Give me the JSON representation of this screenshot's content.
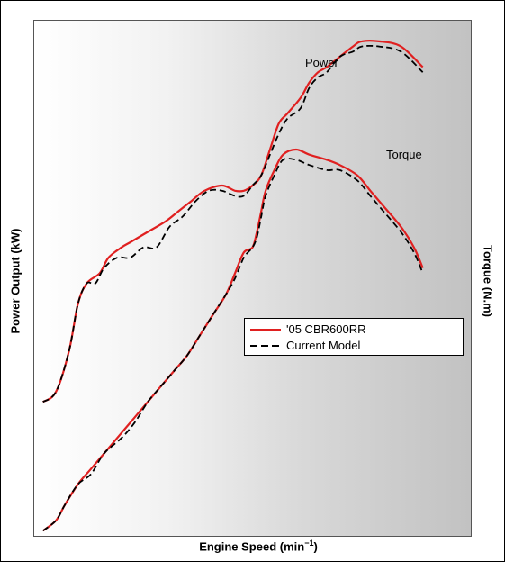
{
  "chart_data": {
    "type": "line",
    "title": "",
    "xlabel": "Engine Speed (min",
    "xlabel_sup": "−1",
    "ylabel_left": "Power Output (kW)",
    "ylabel_right": "Torque (N.m)",
    "grid": false,
    "legend_position": "right",
    "annotations": [
      "Power",
      "Torque"
    ],
    "legend": [
      "'05 CBR600RR",
      "Current Model"
    ],
    "colors": {
      "cbr600rr": "#e02020",
      "current": "#000000"
    },
    "series": [
      {
        "name": "'05 CBR600RR",
        "curve": "Power",
        "style": "solid",
        "points": [
          [
            0.02,
            0.74
          ],
          [
            0.05,
            0.72
          ],
          [
            0.08,
            0.64
          ],
          [
            0.1,
            0.55
          ],
          [
            0.12,
            0.51
          ],
          [
            0.15,
            0.49
          ],
          [
            0.17,
            0.46
          ],
          [
            0.2,
            0.44
          ],
          [
            0.22,
            0.43
          ],
          [
            0.26,
            0.41
          ],
          [
            0.3,
            0.39
          ],
          [
            0.33,
            0.37
          ],
          [
            0.36,
            0.35
          ],
          [
            0.39,
            0.33
          ],
          [
            0.43,
            0.32
          ],
          [
            0.46,
            0.33
          ],
          [
            0.48,
            0.33
          ],
          [
            0.5,
            0.32
          ],
          [
            0.52,
            0.3
          ],
          [
            0.54,
            0.25
          ],
          [
            0.56,
            0.2
          ],
          [
            0.58,
            0.18
          ],
          [
            0.61,
            0.15
          ],
          [
            0.63,
            0.12
          ],
          [
            0.65,
            0.1
          ],
          [
            0.67,
            0.09
          ],
          [
            0.7,
            0.07
          ],
          [
            0.73,
            0.05
          ],
          [
            0.75,
            0.04
          ],
          [
            0.79,
            0.04
          ],
          [
            0.84,
            0.05
          ],
          [
            0.89,
            0.09
          ]
        ]
      },
      {
        "name": "Current Model",
        "curve": "Power",
        "style": "dashed",
        "points": [
          [
            0.02,
            0.74
          ],
          [
            0.05,
            0.72
          ],
          [
            0.08,
            0.64
          ],
          [
            0.1,
            0.55
          ],
          [
            0.12,
            0.51
          ],
          [
            0.14,
            0.51
          ],
          [
            0.16,
            0.48
          ],
          [
            0.19,
            0.46
          ],
          [
            0.22,
            0.46
          ],
          [
            0.25,
            0.44
          ],
          [
            0.28,
            0.44
          ],
          [
            0.31,
            0.4
          ],
          [
            0.34,
            0.38
          ],
          [
            0.37,
            0.35
          ],
          [
            0.4,
            0.33
          ],
          [
            0.43,
            0.33
          ],
          [
            0.46,
            0.34
          ],
          [
            0.48,
            0.34
          ],
          [
            0.5,
            0.32
          ],
          [
            0.52,
            0.3
          ],
          [
            0.54,
            0.26
          ],
          [
            0.56,
            0.22
          ],
          [
            0.58,
            0.19
          ],
          [
            0.61,
            0.17
          ],
          [
            0.63,
            0.13
          ],
          [
            0.65,
            0.11
          ],
          [
            0.67,
            0.1
          ],
          [
            0.7,
            0.07
          ],
          [
            0.73,
            0.06
          ],
          [
            0.75,
            0.05
          ],
          [
            0.79,
            0.05
          ],
          [
            0.84,
            0.06
          ],
          [
            0.89,
            0.1
          ]
        ]
      },
      {
        "name": "'05 CBR600RR",
        "curve": "Torque",
        "style": "solid",
        "points": [
          [
            0.02,
            0.99
          ],
          [
            0.05,
            0.97
          ],
          [
            0.07,
            0.94
          ],
          [
            0.1,
            0.9
          ],
          [
            0.13,
            0.87
          ],
          [
            0.16,
            0.84
          ],
          [
            0.2,
            0.8
          ],
          [
            0.23,
            0.77
          ],
          [
            0.26,
            0.74
          ],
          [
            0.29,
            0.71
          ],
          [
            0.32,
            0.68
          ],
          [
            0.35,
            0.65
          ],
          [
            0.38,
            0.61
          ],
          [
            0.41,
            0.57
          ],
          [
            0.44,
            0.53
          ],
          [
            0.46,
            0.49
          ],
          [
            0.48,
            0.45
          ],
          [
            0.5,
            0.44
          ],
          [
            0.51,
            0.41
          ],
          [
            0.52,
            0.37
          ],
          [
            0.53,
            0.33
          ],
          [
            0.55,
            0.29
          ],
          [
            0.57,
            0.26
          ],
          [
            0.6,
            0.25
          ],
          [
            0.63,
            0.26
          ],
          [
            0.67,
            0.27
          ],
          [
            0.7,
            0.28
          ],
          [
            0.74,
            0.3
          ],
          [
            0.77,
            0.33
          ],
          [
            0.8,
            0.36
          ],
          [
            0.84,
            0.4
          ],
          [
            0.87,
            0.44
          ],
          [
            0.89,
            0.48
          ]
        ]
      },
      {
        "name": "Current Model",
        "curve": "Torque",
        "style": "dashed",
        "points": [
          [
            0.02,
            0.99
          ],
          [
            0.05,
            0.97
          ],
          [
            0.07,
            0.94
          ],
          [
            0.1,
            0.9
          ],
          [
            0.13,
            0.88
          ],
          [
            0.16,
            0.84
          ],
          [
            0.2,
            0.81
          ],
          [
            0.23,
            0.78
          ],
          [
            0.26,
            0.74
          ],
          [
            0.29,
            0.71
          ],
          [
            0.32,
            0.68
          ],
          [
            0.35,
            0.65
          ],
          [
            0.38,
            0.61
          ],
          [
            0.41,
            0.57
          ],
          [
            0.44,
            0.53
          ],
          [
            0.46,
            0.5
          ],
          [
            0.48,
            0.46
          ],
          [
            0.5,
            0.44
          ],
          [
            0.51,
            0.42
          ],
          [
            0.52,
            0.38
          ],
          [
            0.53,
            0.34
          ],
          [
            0.55,
            0.3
          ],
          [
            0.57,
            0.27
          ],
          [
            0.6,
            0.27
          ],
          [
            0.63,
            0.28
          ],
          [
            0.67,
            0.29
          ],
          [
            0.7,
            0.29
          ],
          [
            0.74,
            0.31
          ],
          [
            0.77,
            0.34
          ],
          [
            0.8,
            0.37
          ],
          [
            0.84,
            0.41
          ],
          [
            0.87,
            0.45
          ],
          [
            0.89,
            0.49
          ]
        ]
      }
    ]
  }
}
